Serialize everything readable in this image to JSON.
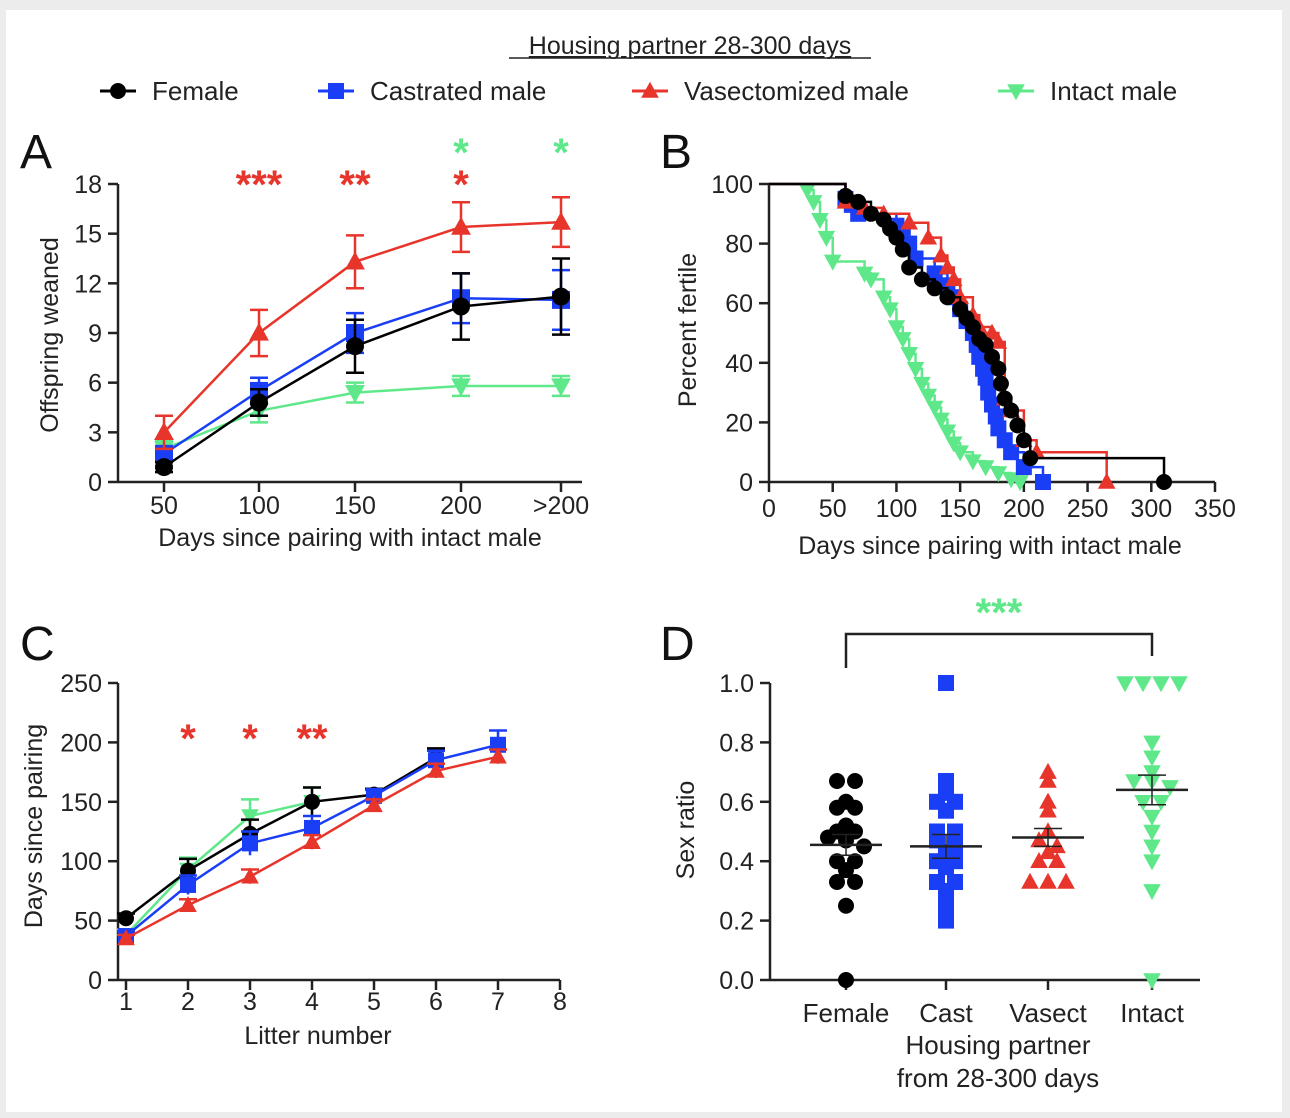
{
  "figure": {
    "title": "Housing partner 28-300 days",
    "legend": [
      {
        "label": "Female",
        "color": "#000000",
        "marker": "circle"
      },
      {
        "label": "Castrated male",
        "color": "#1a3ef5",
        "marker": "square"
      },
      {
        "label": "Vasectomized male",
        "color": "#e8352c",
        "marker": "triangle-up"
      },
      {
        "label": "Intact male",
        "color": "#5ee88a",
        "marker": "triangle-down"
      }
    ],
    "colors": {
      "female": "#000000",
      "castrated": "#1a3ef5",
      "vasectomized": "#e8352c",
      "intact": "#5ee88a"
    }
  },
  "chart_data": [
    {
      "panel": "A",
      "type": "line",
      "xlabel": "Days since pairing with intact male",
      "ylabel": "Offspring weaned",
      "categories": [
        "50",
        "100",
        "150",
        "200",
        ">200"
      ],
      "yticks": [
        "0",
        "3",
        "6",
        "9",
        "12",
        "15",
        "18"
      ],
      "ylim": [
        0,
        18
      ],
      "series": [
        {
          "name": "Female",
          "values": [
            0.9,
            4.8,
            8.2,
            10.6,
            11.2
          ],
          "err": [
            0.3,
            0.8,
            1.6,
            2.0,
            2.3
          ]
        },
        {
          "name": "Castrated male",
          "values": [
            1.7,
            5.5,
            9.0,
            11.1,
            11.0
          ],
          "err": [
            0.4,
            0.8,
            1.2,
            1.5,
            1.8
          ]
        },
        {
          "name": "Vasectomized male",
          "values": [
            3.0,
            9.0,
            13.3,
            15.4,
            15.7
          ],
          "err": [
            1.0,
            1.4,
            1.6,
            1.5,
            1.5
          ]
        },
        {
          "name": "Intact male",
          "values": [
            2.0,
            4.3,
            5.4,
            5.8,
            5.8
          ],
          "err": [
            0.5,
            0.7,
            0.6,
            0.6,
            0.6
          ]
        }
      ],
      "annotations": [
        {
          "text": "***",
          "x": "100",
          "color": "vasectomized",
          "row": 1
        },
        {
          "text": "**",
          "x": "150",
          "color": "vasectomized",
          "row": 1
        },
        {
          "text": "*",
          "x": "200",
          "color": "vasectomized",
          "row": 1
        },
        {
          "text": "*",
          "x": "200",
          "color": "intact",
          "row": 2
        },
        {
          "text": "*",
          "x": ">200",
          "color": "intact",
          "row": 2
        }
      ]
    },
    {
      "panel": "B",
      "type": "line",
      "xlabel": "Days since pairing with intact male",
      "ylabel": "Percent fertile",
      "xticks": [
        "0",
        "50",
        "100",
        "150",
        "200",
        "250",
        "300",
        "350"
      ],
      "xlim": [
        0,
        350
      ],
      "yticks": [
        "0",
        "20",
        "40",
        "60",
        "80",
        "100"
      ],
      "ylim": [
        0,
        100
      ],
      "series": [
        {
          "name": "Female",
          "x": [
            0,
            60,
            70,
            80,
            90,
            95,
            100,
            105,
            110,
            120,
            130,
            140,
            150,
            155,
            160,
            165,
            170,
            175,
            180,
            182,
            185,
            190,
            195,
            200,
            205,
            310
          ],
          "y": [
            100,
            96,
            94,
            90,
            88,
            85,
            82,
            78,
            72,
            68,
            65,
            62,
            58,
            55,
            52,
            48,
            46,
            42,
            38,
            33,
            28,
            24,
            19,
            14,
            8,
            0
          ]
        },
        {
          "name": "Castrated male",
          "x": [
            0,
            60,
            65,
            70,
            100,
            105,
            110,
            115,
            130,
            140,
            145,
            150,
            155,
            160,
            163,
            165,
            168,
            170,
            172,
            175,
            178,
            180,
            185,
            190,
            200,
            215
          ],
          "y": [
            100,
            95,
            93,
            90,
            86,
            83,
            80,
            75,
            70,
            66,
            62,
            58,
            54,
            50,
            46,
            42,
            38,
            35,
            30,
            26,
            22,
            18,
            14,
            10,
            5,
            0
          ]
        },
        {
          "name": "Vasectomized male",
          "x": [
            0,
            60,
            75,
            90,
            110,
            125,
            135,
            140,
            145,
            150,
            160,
            165,
            175,
            180,
            185,
            190,
            200,
            210,
            265
          ],
          "y": [
            100,
            94,
            92,
            90,
            87,
            82,
            76,
            72,
            68,
            62,
            56,
            52,
            50,
            47,
            28,
            24,
            14,
            10,
            0
          ]
        },
        {
          "name": "Intact male",
          "x": [
            0,
            30,
            35,
            40,
            45,
            50,
            75,
            80,
            90,
            95,
            100,
            105,
            110,
            115,
            120,
            125,
            130,
            135,
            140,
            145,
            150,
            160,
            170,
            180,
            190,
            197
          ],
          "y": [
            100,
            98,
            94,
            88,
            82,
            74,
            70,
            68,
            62,
            58,
            52,
            48,
            43,
            38,
            33,
            29,
            25,
            21,
            17,
            13,
            10,
            7,
            5,
            3,
            1,
            0
          ]
        }
      ]
    },
    {
      "panel": "C",
      "type": "line",
      "xlabel": "Litter number",
      "ylabel": "Days since pairing",
      "xticks": [
        "1",
        "2",
        "3",
        "4",
        "5",
        "6",
        "7",
        "8"
      ],
      "xlim": [
        1,
        8
      ],
      "yticks": [
        "0",
        "50",
        "100",
        "150",
        "200",
        "250"
      ],
      "ylim": [
        0,
        250
      ],
      "series": [
        {
          "name": "Female",
          "x": [
            1,
            2,
            3,
            4,
            5,
            6
          ],
          "y": [
            52,
            92,
            123,
            150,
            156,
            187
          ],
          "err": [
            4,
            10,
            12,
            12,
            5,
            8
          ]
        },
        {
          "name": "Castrated male",
          "x": [
            1,
            2,
            3,
            4,
            5,
            6,
            7
          ],
          "y": [
            37,
            80,
            115,
            128,
            155,
            185,
            198
          ],
          "err": [
            4,
            8,
            10,
            10,
            5,
            8,
            12
          ]
        },
        {
          "name": "Vasectomized male",
          "x": [
            1,
            2,
            3,
            4,
            5,
            6,
            7
          ],
          "y": [
            35,
            63,
            87,
            116,
            147,
            176,
            188
          ],
          "err": [
            3,
            5,
            6,
            6,
            5,
            6,
            6
          ]
        },
        {
          "name": "Intact male",
          "x": [
            1,
            2,
            3,
            4
          ],
          "y": [
            38,
            93,
            138,
            150
          ],
          "err": [
            4,
            10,
            14,
            12
          ]
        }
      ],
      "annotations": [
        {
          "text": "*",
          "x": 2,
          "color": "vasectomized"
        },
        {
          "text": "*",
          "x": 3,
          "color": "vasectomized"
        },
        {
          "text": "**",
          "x": 4,
          "color": "vasectomized"
        }
      ]
    },
    {
      "panel": "D",
      "type": "scatter",
      "xlabel": "Housing partner\nfrom 28-300 days",
      "xlabel_lines": [
        "Housing partner",
        "from 28-300 days"
      ],
      "ylabel": "Sex ratio",
      "categories": [
        "Female",
        "Cast",
        "Vasect",
        "Intact"
      ],
      "yticks": [
        "0.0",
        "0.2",
        "0.4",
        "0.6",
        "0.8",
        "1.0"
      ],
      "ylim": [
        0,
        1
      ],
      "series": [
        {
          "name": "Female",
          "values": [
            0.67,
            0.67,
            0.6,
            0.58,
            0.58,
            0.52,
            0.5,
            0.5,
            0.48,
            0.47,
            0.45,
            0.4,
            0.4,
            0.37,
            0.33,
            0.33,
            0.25,
            0.0
          ],
          "mean": 0.455,
          "sem": 0.035
        },
        {
          "name": "Cast",
          "values": [
            1.0,
            0.67,
            0.63,
            0.6,
            0.6,
            0.57,
            0.5,
            0.5,
            0.47,
            0.45,
            0.43,
            0.4,
            0.4,
            0.38,
            0.33,
            0.33,
            0.3,
            0.25,
            0.22,
            0.2
          ],
          "mean": 0.45,
          "sem": 0.04
        },
        {
          "name": "Vasect",
          "values": [
            0.7,
            0.67,
            0.6,
            0.57,
            0.5,
            0.47,
            0.45,
            0.43,
            0.4,
            0.4,
            0.33,
            0.33,
            0.33
          ],
          "mean": 0.48,
          "sem": 0.03
        },
        {
          "name": "Intact",
          "values": [
            1.0,
            1.0,
            1.0,
            1.0,
            0.8,
            0.75,
            0.7,
            0.67,
            0.67,
            0.65,
            0.6,
            0.6,
            0.55,
            0.5,
            0.45,
            0.4,
            0.3,
            0.0
          ],
          "mean": 0.64,
          "sem": 0.05
        }
      ],
      "bracket": {
        "from": "Female",
        "to": "Intact",
        "text": "***",
        "color": "intact"
      }
    }
  ],
  "panels": {
    "A": {
      "letter": "A"
    },
    "B": {
      "letter": "B"
    },
    "C": {
      "letter": "C"
    },
    "D": {
      "letter": "D"
    }
  }
}
